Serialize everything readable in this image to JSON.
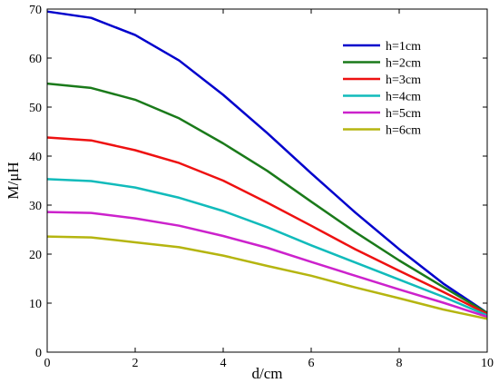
{
  "chart_data": {
    "type": "line",
    "xlabel": "d/cm",
    "ylabel": "M/μH",
    "xlim": [
      0,
      10
    ],
    "ylim": [
      0,
      70
    ],
    "xticks": [
      0,
      2,
      4,
      6,
      8,
      10
    ],
    "yticks": [
      0,
      10,
      20,
      30,
      40,
      50,
      60,
      70
    ],
    "x": [
      0,
      1,
      2,
      3,
      4,
      5,
      6,
      7,
      8,
      9,
      10
    ],
    "grid": false,
    "legend_position": "top-right",
    "series": [
      {
        "name": "h=1cm",
        "color": "#0000cc",
        "values": [
          69.5,
          68.2,
          64.7,
          59.5,
          52.5,
          44.7,
          36.5,
          28.5,
          21.0,
          14.0,
          8.0
        ]
      },
      {
        "name": "h=2cm",
        "color": "#1a7a1a",
        "values": [
          54.8,
          53.9,
          51.5,
          47.7,
          42.6,
          37.0,
          30.7,
          24.5,
          18.7,
          13.3,
          8.0
        ]
      },
      {
        "name": "h=3cm",
        "color": "#ee1111",
        "values": [
          43.8,
          43.2,
          41.2,
          38.6,
          35.0,
          30.5,
          25.8,
          21.0,
          16.6,
          12.3,
          7.8
        ]
      },
      {
        "name": "h=4cm",
        "color": "#11bbbb",
        "values": [
          35.3,
          34.9,
          33.6,
          31.5,
          28.8,
          25.5,
          21.8,
          18.3,
          14.8,
          11.3,
          7.5
        ]
      },
      {
        "name": "h=5cm",
        "color": "#cc22cc",
        "values": [
          28.6,
          28.4,
          27.3,
          25.8,
          23.7,
          21.3,
          18.4,
          15.6,
          12.8,
          10.1,
          7.2
        ]
      },
      {
        "name": "h=6cm",
        "color": "#b5b510",
        "values": [
          23.6,
          23.4,
          22.4,
          21.4,
          19.7,
          17.6,
          15.6,
          13.2,
          11.0,
          8.7,
          6.8
        ]
      }
    ]
  }
}
